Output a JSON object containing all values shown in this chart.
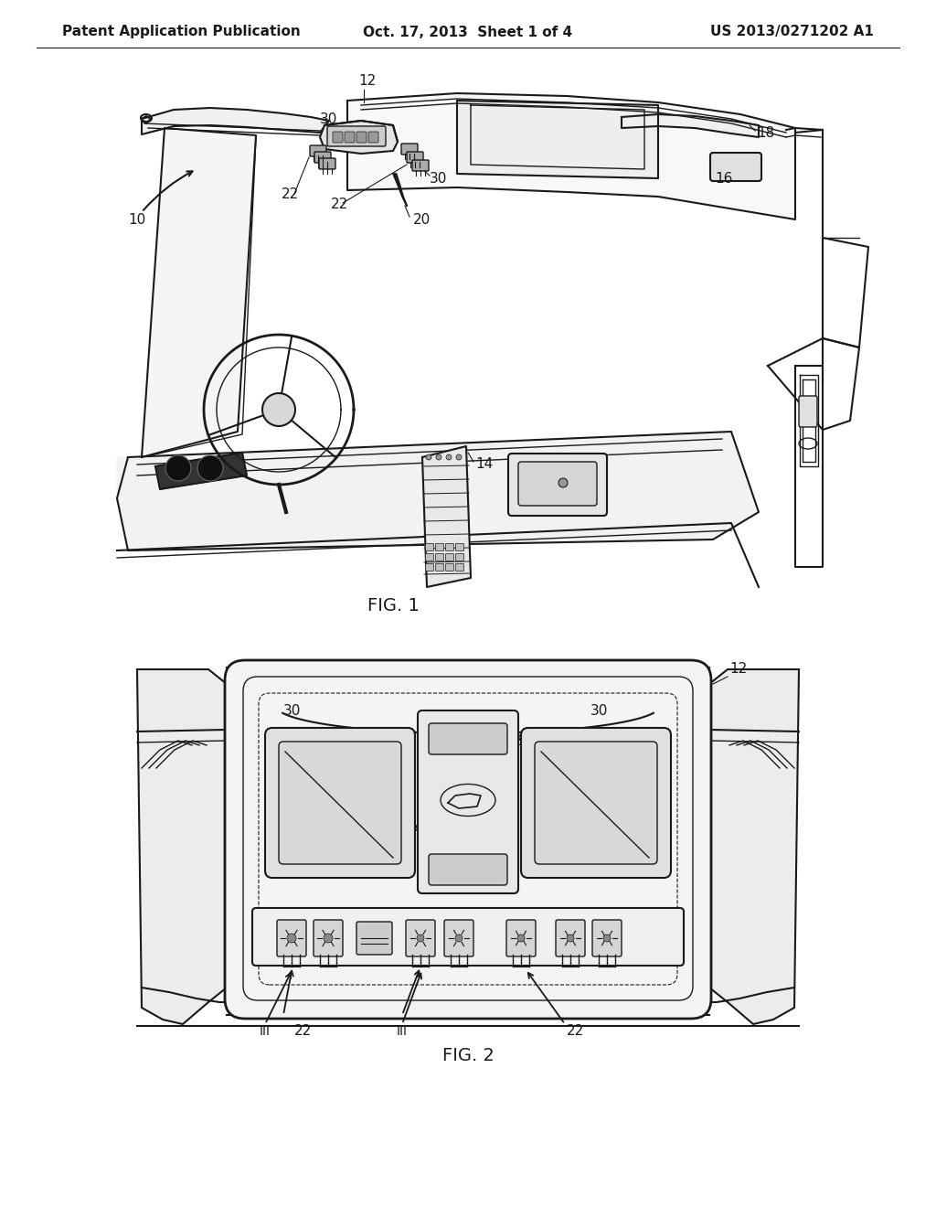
{
  "background_color": "#ffffff",
  "header_left": "Patent Application Publication",
  "header_center": "Oct. 17, 2013  Sheet 1 of 4",
  "header_right": "US 2013/0271202 A1",
  "header_fontsize": 11,
  "fig1_label": "FIG. 1",
  "fig2_label": "FIG. 2",
  "label_fontsize": 14,
  "ref_fontsize": 11,
  "line_color": "#1a1a1a"
}
